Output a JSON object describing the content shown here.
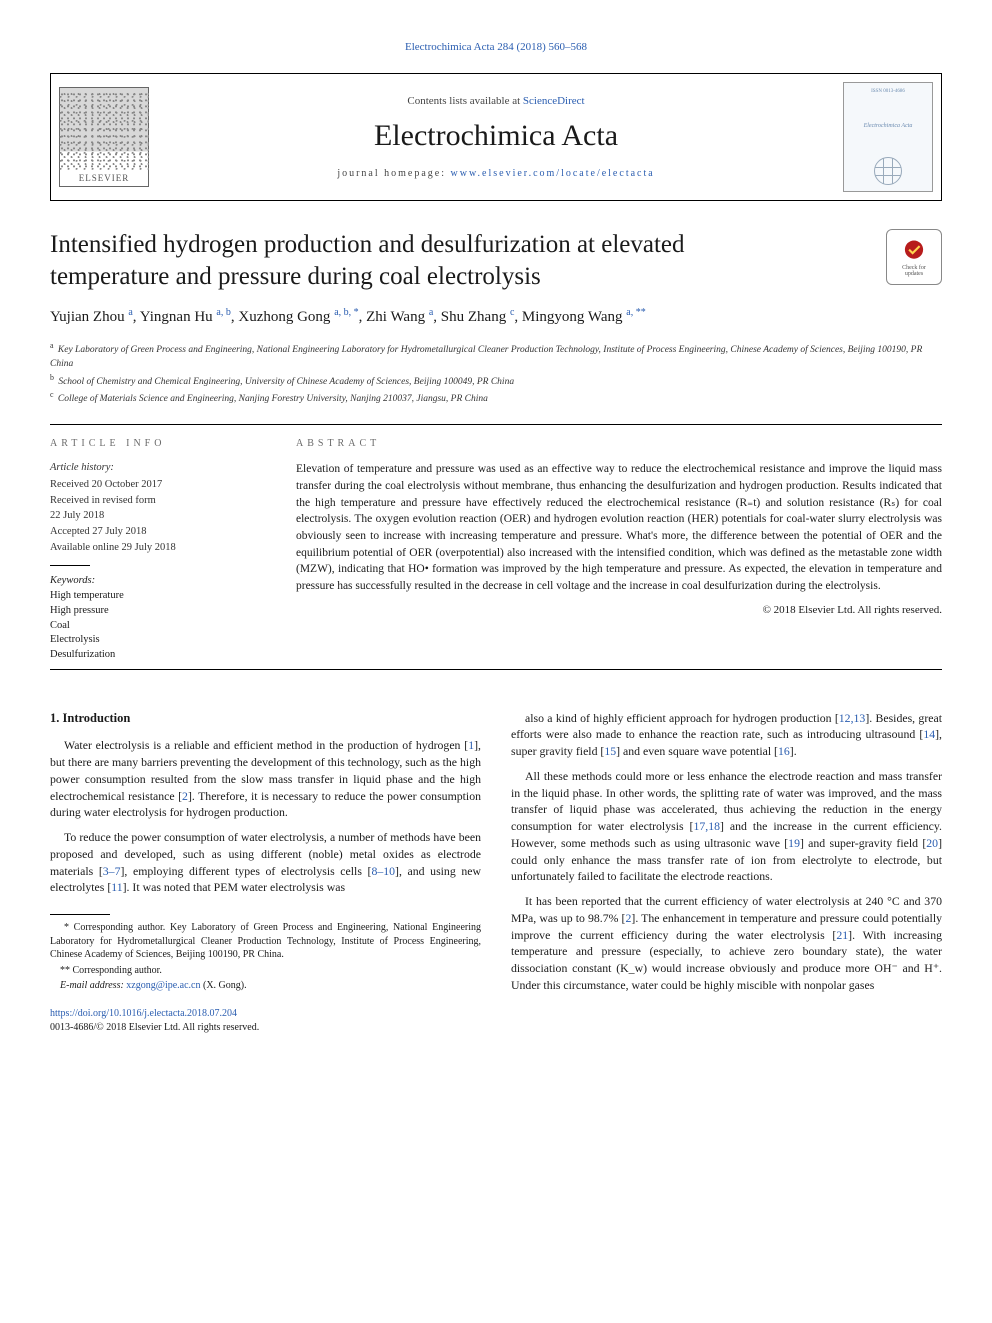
{
  "topCitation": {
    "text": "Electrochimica Acta 284 (2018) 560–568",
    "color": "#2a5db0"
  },
  "banner": {
    "contentsListLabel": "Contents lists available at ",
    "contentsListLink": "ScienceDirect",
    "journalTitle": "Electrochimica Acta",
    "homepageLabel": "journal homepage: ",
    "homepageLink": "www.elsevier.com/locate/electacta",
    "publisherLogoText": "ELSEVIER",
    "coverSmallTop": "ISSN 0013-4686",
    "coverSmallTitle": "Electrochimica Acta"
  },
  "checkBadge": {
    "line1": "Check for",
    "line2": "updates",
    "circleFill": "#b71c1c",
    "markColor": "#ffd54f"
  },
  "article": {
    "title": "Intensified hydrogen production and desulfurization at elevated temperature and pressure during coal electrolysis"
  },
  "authors": [
    {
      "name": "Yujian Zhou",
      "sup": "a"
    },
    {
      "name": "Yingnan Hu",
      "sup": "a, b"
    },
    {
      "name": "Xuzhong Gong",
      "sup": "a, b, *"
    },
    {
      "name": "Zhi Wang",
      "sup": "a"
    },
    {
      "name": "Shu Zhang",
      "sup": "c"
    },
    {
      "name": "Mingyong Wang",
      "sup": "a, **"
    }
  ],
  "affiliations": [
    {
      "sup": "a",
      "text": "Key Laboratory of Green Process and Engineering, National Engineering Laboratory for Hydrometallurgical Cleaner Production Technology, Institute of Process Engineering, Chinese Academy of Sciences, Beijing 100190, PR China"
    },
    {
      "sup": "b",
      "text": "School of Chemistry and Chemical Engineering, University of Chinese Academy of Sciences, Beijing 100049, PR China"
    },
    {
      "sup": "c",
      "text": "College of Materials Science and Engineering, Nanjing Forestry University, Nanjing 210037, Jiangsu, PR China"
    }
  ],
  "articleInfo": {
    "heading": "ARTICLE INFO",
    "historyHeading": "Article history:",
    "history": [
      "Received 20 October 2017",
      "Received in revised form",
      "22 July 2018",
      "Accepted 27 July 2018",
      "Available online 29 July 2018"
    ],
    "keywordsHeading": "Keywords:",
    "keywords": [
      "High temperature",
      "High pressure",
      "Coal",
      "Electrolysis",
      "Desulfurization"
    ]
  },
  "abstract": {
    "heading": "ABSTRACT",
    "text": "Elevation of temperature and pressure was used as an effective way to reduce the electrochemical resistance and improve the liquid mass transfer during the coal electrolysis without membrane, thus enhancing the desulfurization and hydrogen production. Results indicated that the high temperature and pressure have effectively reduced the electrochemical resistance (R₌t) and solution resistance (Rₛ) for coal electrolysis. The oxygen evolution reaction (OER) and hydrogen evolution reaction (HER) potentials for coal-water slurry electrolysis was obviously seen to increase with increasing temperature and pressure. What's more, the difference between the potential of OER and the equilibrium potential of OER (overpotential) also increased with the intensified condition, which was defined as the metastable zone width (MZW), indicating that HO• formation was improved by the high temperature and pressure. As expected, the elevation in temperature and pressure has successfully resulted in the decrease in cell voltage and the increase in coal desulfurization during the electrolysis.",
    "copyright": "© 2018 Elsevier Ltd. All rights reserved."
  },
  "intro": {
    "heading": "1. Introduction",
    "paragraphsLeft": [
      "Water electrolysis is a reliable and efficient method in the production of hydrogen [1], but there are many barriers preventing the development of this technology, such as the high power consumption resulted from the slow mass transfer in liquid phase and the high electrochemical resistance [2]. Therefore, it is necessary to reduce the power consumption during water electrolysis for hydrogen production.",
      "To reduce the power consumption of water electrolysis, a number of methods have been proposed and developed, such as using different (noble) metal oxides as electrode materials [3–7], employing different types of electrolysis cells [8–10], and using new electrolytes [11]. It was noted that PEM water electrolysis was"
    ],
    "paragraphsRight": [
      "also a kind of highly efficient approach for hydrogen production [12,13]. Besides, great efforts were also made to enhance the reaction rate, such as introducing ultrasound [14], super gravity field [15] and even square wave potential [16].",
      "All these methods could more or less enhance the electrode reaction and mass transfer in the liquid phase. In other words, the splitting rate of water was improved, and the mass transfer of liquid phase was accelerated, thus achieving the reduction in the energy consumption for water electrolysis [17,18] and the increase in the current efficiency. However, some methods such as using ultrasonic wave [19] and super-gravity field [20] could only enhance the mass transfer rate of ion from electrolyte to electrode, but unfortunately failed to facilitate the electrode reactions.",
      "It has been reported that the current efficiency of water electrolysis at 240 °C and 370 MPa, was up to 98.7% [2]. The enhancement in temperature and pressure could potentially improve the current efficiency during the water electrolysis [21]. With increasing temperature and pressure (especially, to achieve zero boundary state), the water dissociation constant (K_w) would increase obviously and produce more OH⁻ and H⁺. Under this circumstance, water could be highly miscible with nonpolar gases"
    ]
  },
  "footnotes": {
    "star": "* Corresponding author. Key Laboratory of Green Process and Engineering, National Engineering Laboratory for Hydrometallurgical Cleaner Production Technology, Institute of Process Engineering, Chinese Academy of Sciences, Beijing 100190, PR China.",
    "dstar": "** Corresponding author.",
    "emailLabel": "E-mail address: ",
    "email": "xzgong@ipe.ac.cn",
    "emailSuffix": " (X. Gong)."
  },
  "doi": {
    "link": "https://doi.org/10.1016/j.electacta.2018.07.204",
    "issn": "0013-4686/© 2018 Elsevier Ltd. All rights reserved."
  },
  "refColor": "#2a5db0"
}
